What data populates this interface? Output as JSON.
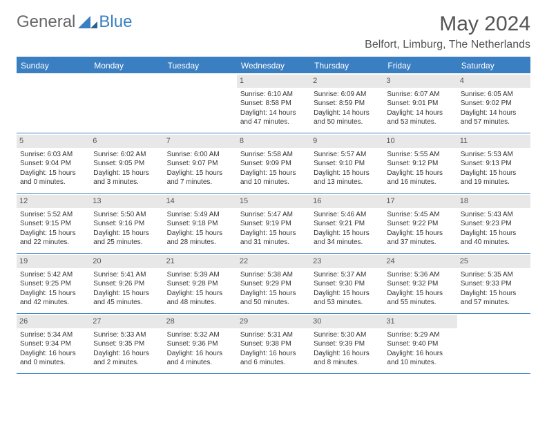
{
  "logo": {
    "text1": "General",
    "text2": "Blue"
  },
  "header": {
    "month_title": "May 2024",
    "location": "Belfort, Limburg, The Netherlands"
  },
  "colors": {
    "accent": "#3a7fc2",
    "daynum_bg": "#e8e8e8",
    "text": "#333333",
    "background": "#ffffff"
  },
  "calendar": {
    "type": "table",
    "weekdays": [
      "Sunday",
      "Monday",
      "Tuesday",
      "Wednesday",
      "Thursday",
      "Friday",
      "Saturday"
    ],
    "weeks": [
      [
        {
          "empty": true
        },
        {
          "empty": true
        },
        {
          "empty": true
        },
        {
          "num": "1",
          "sunrise": "Sunrise: 6:10 AM",
          "sunset": "Sunset: 8:58 PM",
          "daylight1": "Daylight: 14 hours",
          "daylight2": "and 47 minutes."
        },
        {
          "num": "2",
          "sunrise": "Sunrise: 6:09 AM",
          "sunset": "Sunset: 8:59 PM",
          "daylight1": "Daylight: 14 hours",
          "daylight2": "and 50 minutes."
        },
        {
          "num": "3",
          "sunrise": "Sunrise: 6:07 AM",
          "sunset": "Sunset: 9:01 PM",
          "daylight1": "Daylight: 14 hours",
          "daylight2": "and 53 minutes."
        },
        {
          "num": "4",
          "sunrise": "Sunrise: 6:05 AM",
          "sunset": "Sunset: 9:02 PM",
          "daylight1": "Daylight: 14 hours",
          "daylight2": "and 57 minutes."
        }
      ],
      [
        {
          "num": "5",
          "sunrise": "Sunrise: 6:03 AM",
          "sunset": "Sunset: 9:04 PM",
          "daylight1": "Daylight: 15 hours",
          "daylight2": "and 0 minutes."
        },
        {
          "num": "6",
          "sunrise": "Sunrise: 6:02 AM",
          "sunset": "Sunset: 9:05 PM",
          "daylight1": "Daylight: 15 hours",
          "daylight2": "and 3 minutes."
        },
        {
          "num": "7",
          "sunrise": "Sunrise: 6:00 AM",
          "sunset": "Sunset: 9:07 PM",
          "daylight1": "Daylight: 15 hours",
          "daylight2": "and 7 minutes."
        },
        {
          "num": "8",
          "sunrise": "Sunrise: 5:58 AM",
          "sunset": "Sunset: 9:09 PM",
          "daylight1": "Daylight: 15 hours",
          "daylight2": "and 10 minutes."
        },
        {
          "num": "9",
          "sunrise": "Sunrise: 5:57 AM",
          "sunset": "Sunset: 9:10 PM",
          "daylight1": "Daylight: 15 hours",
          "daylight2": "and 13 minutes."
        },
        {
          "num": "10",
          "sunrise": "Sunrise: 5:55 AM",
          "sunset": "Sunset: 9:12 PM",
          "daylight1": "Daylight: 15 hours",
          "daylight2": "and 16 minutes."
        },
        {
          "num": "11",
          "sunrise": "Sunrise: 5:53 AM",
          "sunset": "Sunset: 9:13 PM",
          "daylight1": "Daylight: 15 hours",
          "daylight2": "and 19 minutes."
        }
      ],
      [
        {
          "num": "12",
          "sunrise": "Sunrise: 5:52 AM",
          "sunset": "Sunset: 9:15 PM",
          "daylight1": "Daylight: 15 hours",
          "daylight2": "and 22 minutes."
        },
        {
          "num": "13",
          "sunrise": "Sunrise: 5:50 AM",
          "sunset": "Sunset: 9:16 PM",
          "daylight1": "Daylight: 15 hours",
          "daylight2": "and 25 minutes."
        },
        {
          "num": "14",
          "sunrise": "Sunrise: 5:49 AM",
          "sunset": "Sunset: 9:18 PM",
          "daylight1": "Daylight: 15 hours",
          "daylight2": "and 28 minutes."
        },
        {
          "num": "15",
          "sunrise": "Sunrise: 5:47 AM",
          "sunset": "Sunset: 9:19 PM",
          "daylight1": "Daylight: 15 hours",
          "daylight2": "and 31 minutes."
        },
        {
          "num": "16",
          "sunrise": "Sunrise: 5:46 AM",
          "sunset": "Sunset: 9:21 PM",
          "daylight1": "Daylight: 15 hours",
          "daylight2": "and 34 minutes."
        },
        {
          "num": "17",
          "sunrise": "Sunrise: 5:45 AM",
          "sunset": "Sunset: 9:22 PM",
          "daylight1": "Daylight: 15 hours",
          "daylight2": "and 37 minutes."
        },
        {
          "num": "18",
          "sunrise": "Sunrise: 5:43 AM",
          "sunset": "Sunset: 9:23 PM",
          "daylight1": "Daylight: 15 hours",
          "daylight2": "and 40 minutes."
        }
      ],
      [
        {
          "num": "19",
          "sunrise": "Sunrise: 5:42 AM",
          "sunset": "Sunset: 9:25 PM",
          "daylight1": "Daylight: 15 hours",
          "daylight2": "and 42 minutes."
        },
        {
          "num": "20",
          "sunrise": "Sunrise: 5:41 AM",
          "sunset": "Sunset: 9:26 PM",
          "daylight1": "Daylight: 15 hours",
          "daylight2": "and 45 minutes."
        },
        {
          "num": "21",
          "sunrise": "Sunrise: 5:39 AM",
          "sunset": "Sunset: 9:28 PM",
          "daylight1": "Daylight: 15 hours",
          "daylight2": "and 48 minutes."
        },
        {
          "num": "22",
          "sunrise": "Sunrise: 5:38 AM",
          "sunset": "Sunset: 9:29 PM",
          "daylight1": "Daylight: 15 hours",
          "daylight2": "and 50 minutes."
        },
        {
          "num": "23",
          "sunrise": "Sunrise: 5:37 AM",
          "sunset": "Sunset: 9:30 PM",
          "daylight1": "Daylight: 15 hours",
          "daylight2": "and 53 minutes."
        },
        {
          "num": "24",
          "sunrise": "Sunrise: 5:36 AM",
          "sunset": "Sunset: 9:32 PM",
          "daylight1": "Daylight: 15 hours",
          "daylight2": "and 55 minutes."
        },
        {
          "num": "25",
          "sunrise": "Sunrise: 5:35 AM",
          "sunset": "Sunset: 9:33 PM",
          "daylight1": "Daylight: 15 hours",
          "daylight2": "and 57 minutes."
        }
      ],
      [
        {
          "num": "26",
          "sunrise": "Sunrise: 5:34 AM",
          "sunset": "Sunset: 9:34 PM",
          "daylight1": "Daylight: 16 hours",
          "daylight2": "and 0 minutes."
        },
        {
          "num": "27",
          "sunrise": "Sunrise: 5:33 AM",
          "sunset": "Sunset: 9:35 PM",
          "daylight1": "Daylight: 16 hours",
          "daylight2": "and 2 minutes."
        },
        {
          "num": "28",
          "sunrise": "Sunrise: 5:32 AM",
          "sunset": "Sunset: 9:36 PM",
          "daylight1": "Daylight: 16 hours",
          "daylight2": "and 4 minutes."
        },
        {
          "num": "29",
          "sunrise": "Sunrise: 5:31 AM",
          "sunset": "Sunset: 9:38 PM",
          "daylight1": "Daylight: 16 hours",
          "daylight2": "and 6 minutes."
        },
        {
          "num": "30",
          "sunrise": "Sunrise: 5:30 AM",
          "sunset": "Sunset: 9:39 PM",
          "daylight1": "Daylight: 16 hours",
          "daylight2": "and 8 minutes."
        },
        {
          "num": "31",
          "sunrise": "Sunrise: 5:29 AM",
          "sunset": "Sunset: 9:40 PM",
          "daylight1": "Daylight: 16 hours",
          "daylight2": "and 10 minutes."
        },
        {
          "empty": true
        }
      ]
    ]
  }
}
